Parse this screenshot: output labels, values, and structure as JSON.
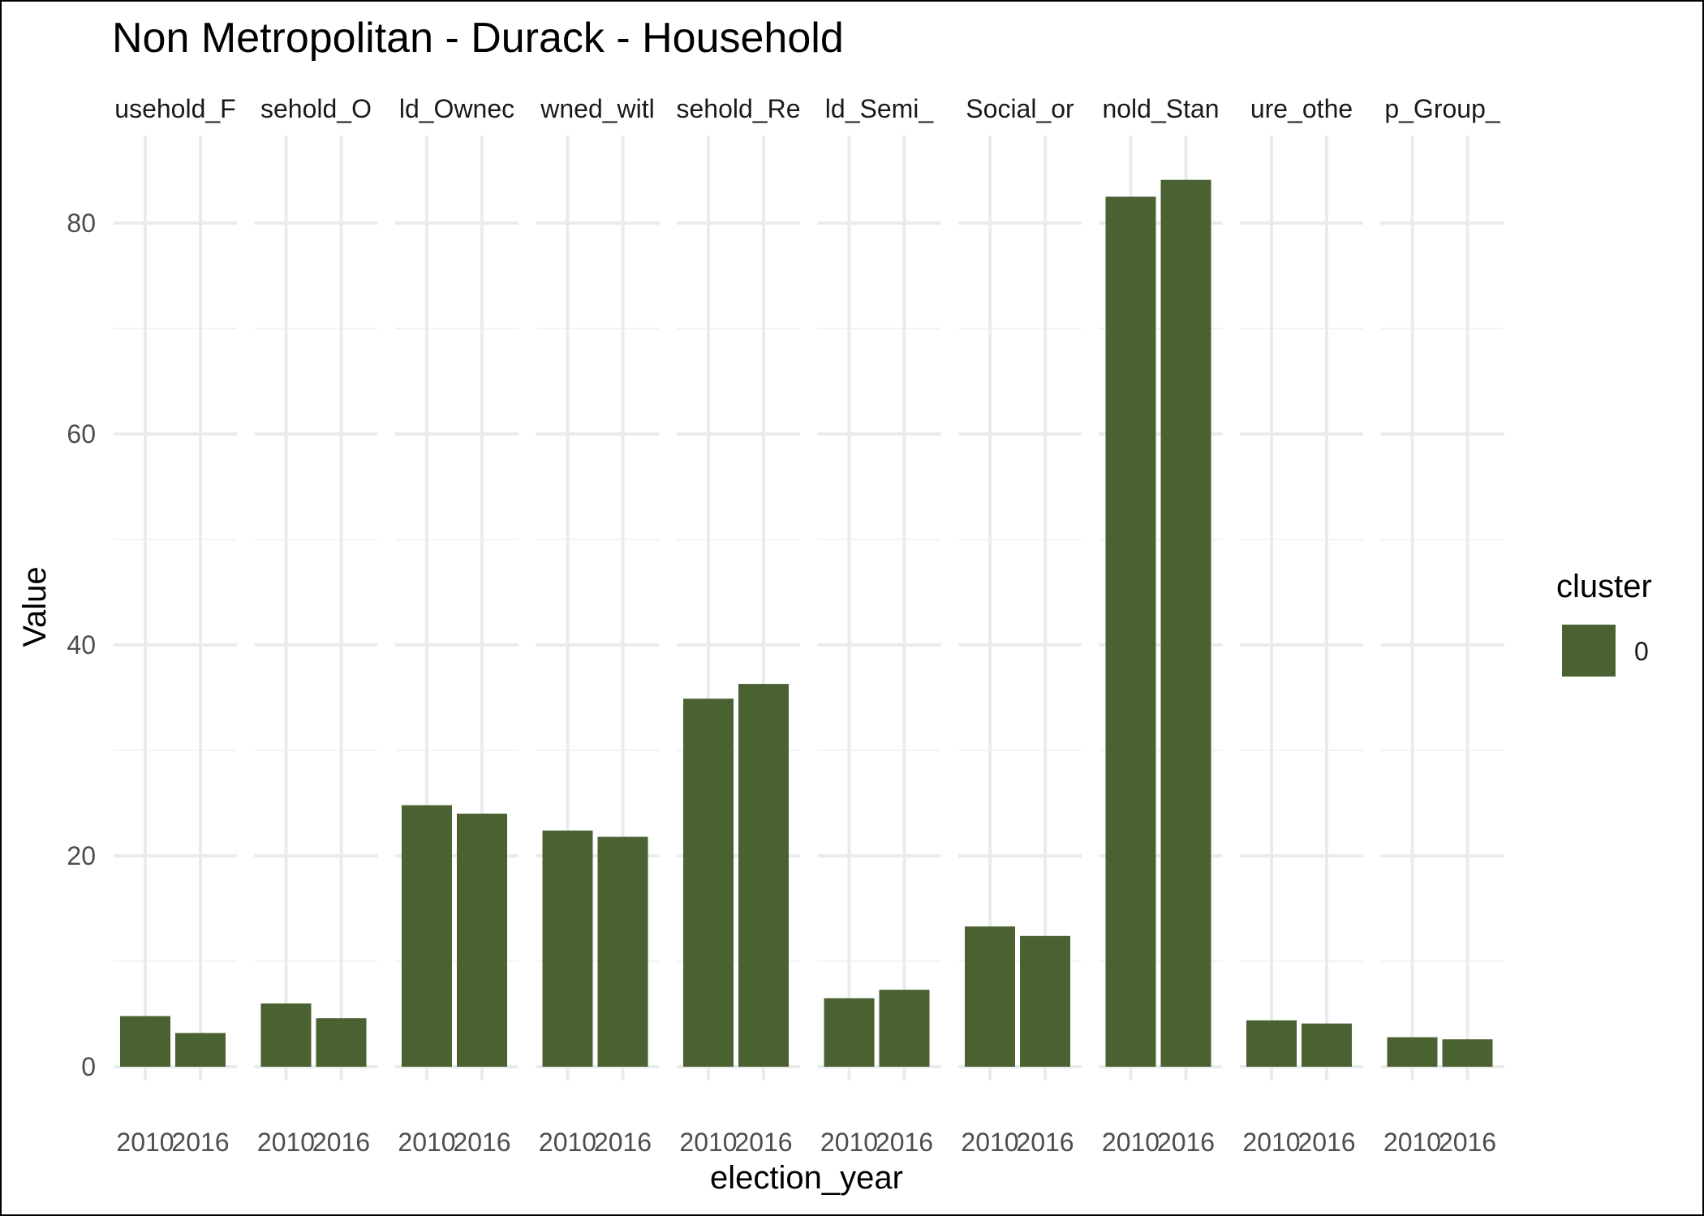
{
  "chart_data": {
    "type": "bar",
    "title": "Non Metropolitan - Durack - Household",
    "xlabel": "election_year",
    "ylabel": "Value",
    "ylim": [
      0,
      88
    ],
    "y_ticks": [
      0,
      20,
      40,
      60,
      80
    ],
    "grid": true,
    "legend": {
      "title": "cluster",
      "placement": "right",
      "items": [
        {
          "label": "0",
          "color": "#4a6132"
        }
      ]
    },
    "categories": [
      "2010",
      "2016"
    ],
    "facets": [
      {
        "label": "usehold_F",
        "values": [
          4.8,
          3.2
        ]
      },
      {
        "label": "sehold_O",
        "values": [
          6.0,
          4.6
        ]
      },
      {
        "label": "ld_Ownec",
        "values": [
          24.8,
          24.0
        ]
      },
      {
        "label": "wned_witl",
        "values": [
          22.4,
          21.8
        ]
      },
      {
        "label": "sehold_Re",
        "values": [
          34.9,
          36.3
        ]
      },
      {
        "label": "ld_Semi_",
        "values": [
          6.5,
          7.3
        ]
      },
      {
        "label": "Social_or",
        "values": [
          13.3,
          12.4
        ]
      },
      {
        "label": "nold_Stan",
        "values": [
          82.5,
          84.1
        ]
      },
      {
        "label": "ure_othe",
        "values": [
          4.4,
          4.1
        ]
      },
      {
        "label": "p_Group_",
        "values": [
          2.8,
          2.6
        ]
      }
    ]
  }
}
